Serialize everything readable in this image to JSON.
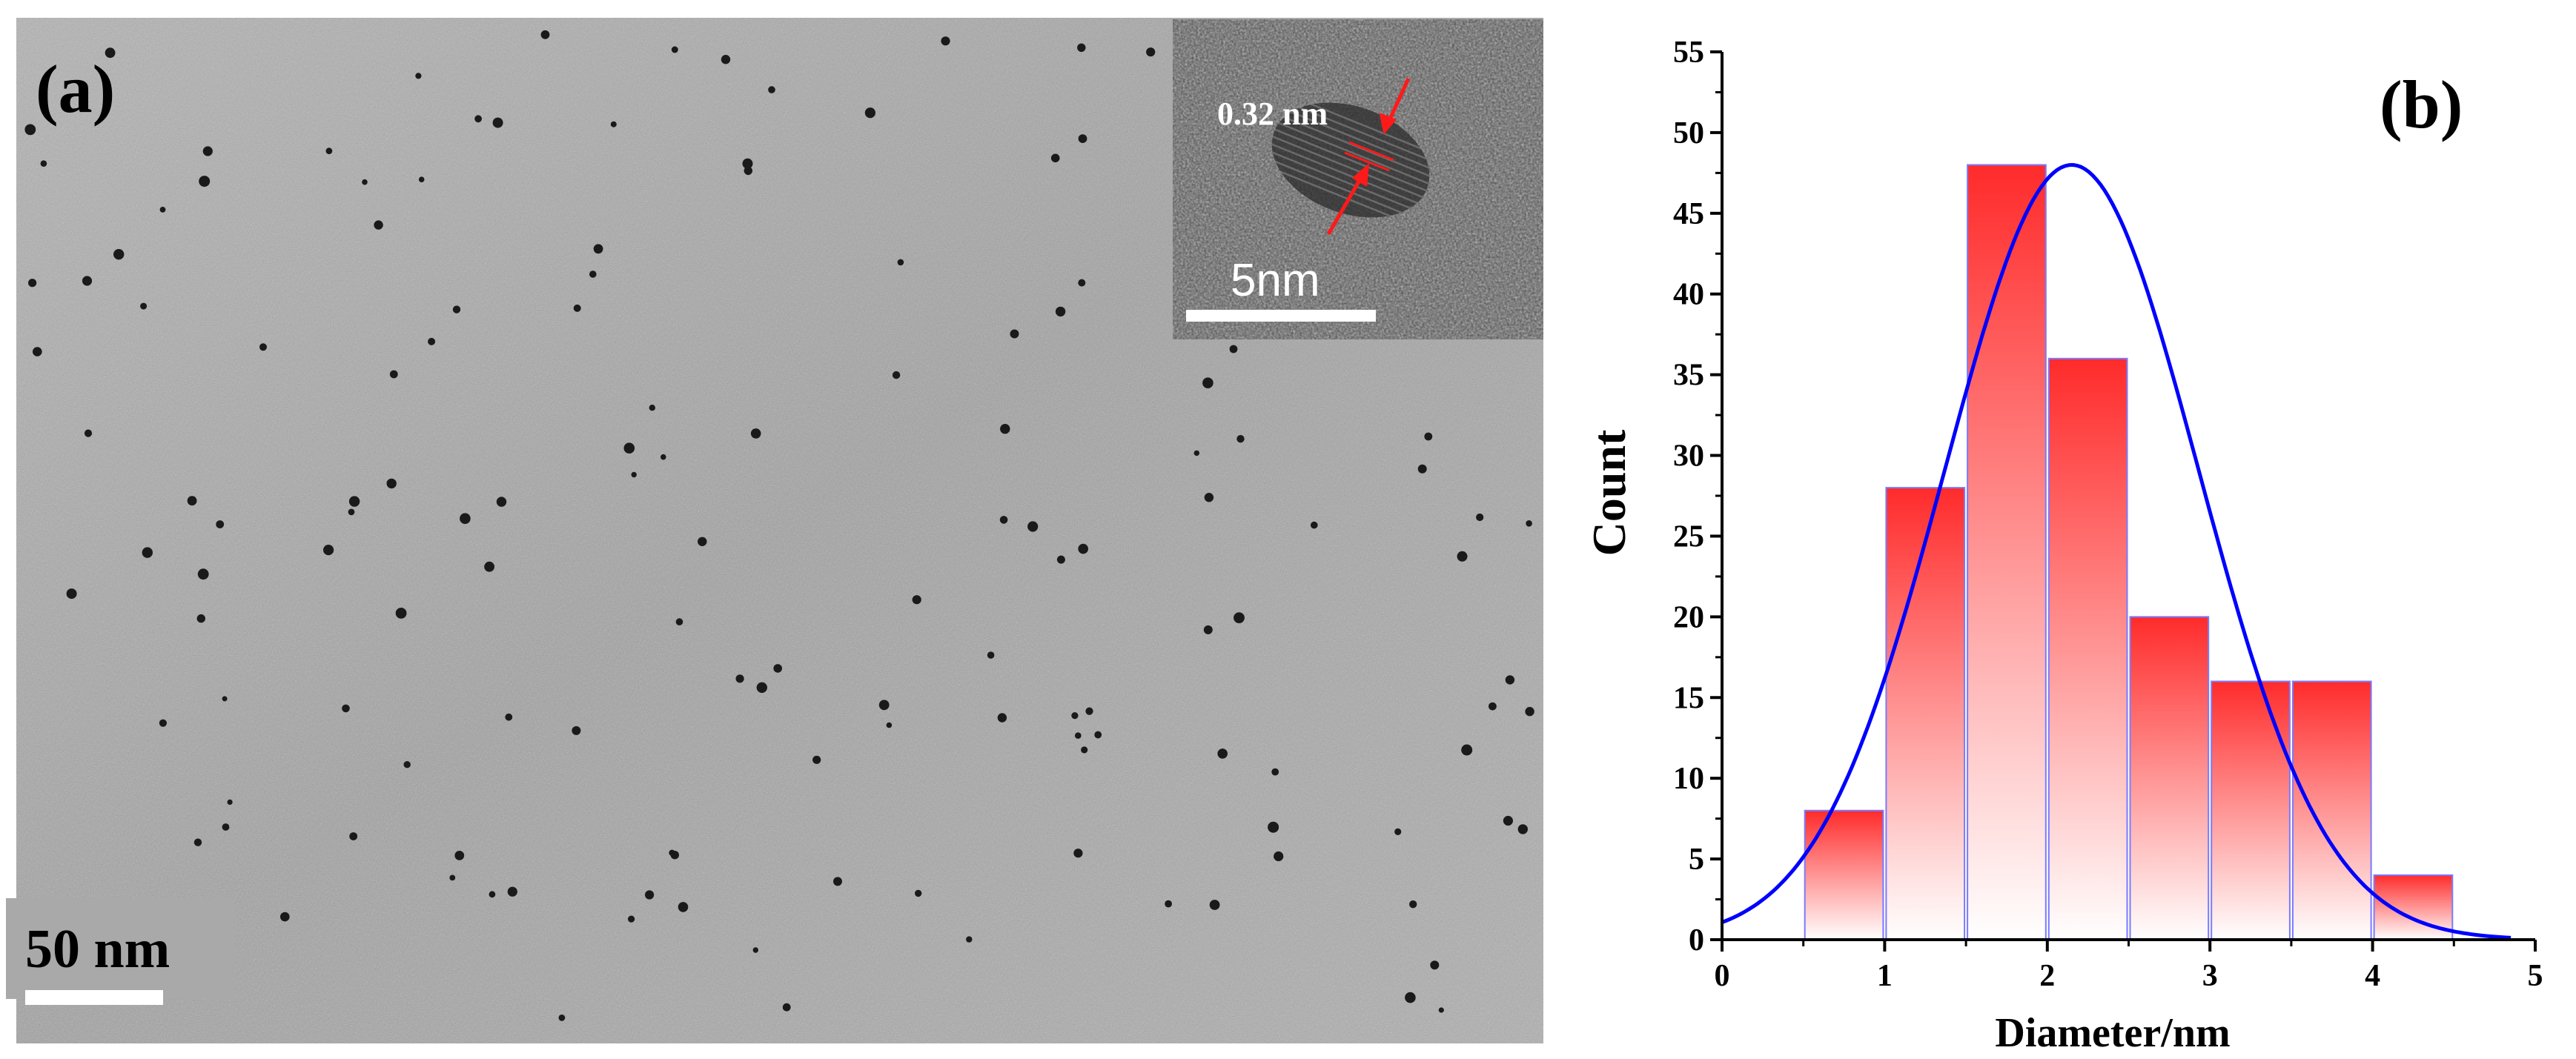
{
  "panel_a": {
    "label": "(a)",
    "scale_bar_label": "50 nm",
    "inset": {
      "lattice_spacing_label": "0.32 nm",
      "scale_bar_label": "5nm"
    }
  },
  "panel_b": {
    "label": "(b)"
  },
  "colors": {
    "bar_top": "#ff2b2b",
    "bar_bottom": "#ffffff",
    "bar_edge": "#7a7aff",
    "fit_curve": "#0000ff",
    "arrow": "#ff1a1a"
  },
  "chart_data": {
    "type": "bar",
    "xlabel": "Diameter/nm",
    "ylabel": "Count",
    "xlim": [
      0,
      5
    ],
    "ylim": [
      0,
      55
    ],
    "xticks": [
      0,
      1,
      2,
      3,
      4,
      5
    ],
    "yticks": [
      0,
      5,
      10,
      15,
      20,
      25,
      30,
      35,
      40,
      45,
      50,
      55
    ],
    "grid": false,
    "bars": [
      {
        "x_start": 0.5,
        "x_end": 1.0,
        "value": 8
      },
      {
        "x_start": 1.0,
        "x_end": 1.5,
        "value": 28
      },
      {
        "x_start": 1.5,
        "x_end": 2.0,
        "value": 48
      },
      {
        "x_start": 2.0,
        "x_end": 2.5,
        "value": 36
      },
      {
        "x_start": 2.5,
        "x_end": 3.0,
        "value": 20
      },
      {
        "x_start": 3.0,
        "x_end": 3.5,
        "value": 16
      },
      {
        "x_start": 3.5,
        "x_end": 4.0,
        "value": 16
      },
      {
        "x_start": 4.0,
        "x_end": 4.5,
        "value": 4
      }
    ],
    "fit_curve": {
      "type": "gaussian",
      "peak_x": 2.15,
      "peak_y": 48,
      "x_range": [
        0,
        4.85
      ],
      "points": [
        [
          0,
          1.8
        ],
        [
          0.5,
          6
        ],
        [
          1.0,
          17.5
        ],
        [
          1.5,
          34.5
        ],
        [
          2.15,
          48
        ],
        [
          2.5,
          44.5
        ],
        [
          3.0,
          30
        ],
        [
          3.5,
          14.5
        ],
        [
          4.0,
          5
        ],
        [
          4.5,
          1
        ],
        [
          4.85,
          0.2
        ]
      ]
    }
  }
}
